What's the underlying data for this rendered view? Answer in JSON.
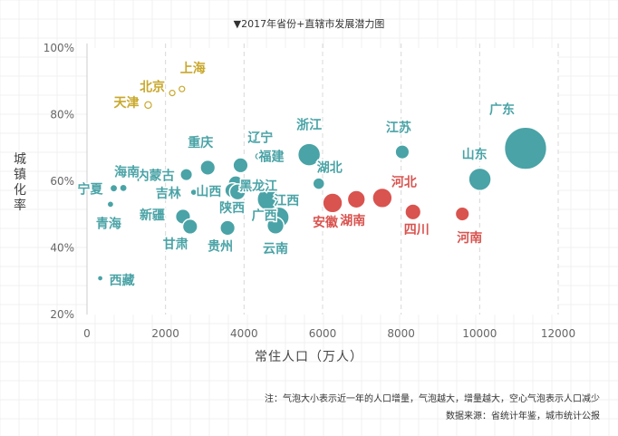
{
  "chart_data": {
    "type": "scatter",
    "title": "▼2017年省份+直辖市发展潜力图",
    "xlabel": "常住人口（万人）",
    "ylabel": "城镇化率",
    "xlim": [
      0,
      12000
    ],
    "ylim": [
      20,
      100
    ],
    "xticks": [
      "0",
      "2000",
      "4000",
      "6000",
      "8000",
      "10000",
      "12000"
    ],
    "yticks": [
      "20%",
      "40%",
      "60%",
      "80%",
      "100%"
    ],
    "grid": "vertical dashed",
    "colors": {
      "gold": "#c9a82c",
      "teal": "#4aa3a6",
      "red": "#d9534f",
      "hollow": "#c9a82c"
    },
    "points": [
      {
        "name": "上海",
        "x": 2418,
        "y": 87.7,
        "size": 0.9,
        "color": "gold",
        "hollow": true
      },
      {
        "name": "北京",
        "x": 2171,
        "y": 86.5,
        "size": 0.9,
        "color": "gold",
        "hollow": true
      },
      {
        "name": "天津",
        "x": 1557,
        "y": 82.9,
        "size": 1.4,
        "color": "gold",
        "hollow": true
      },
      {
        "name": "广东",
        "x": 11169,
        "y": 69.9,
        "size": 9.0,
        "color": "teal"
      },
      {
        "name": "江苏",
        "x": 8029,
        "y": 68.8,
        "size": 3.0,
        "color": "teal"
      },
      {
        "name": "浙江",
        "x": 5657,
        "y": 68.0,
        "size": 4.8,
        "color": "teal"
      },
      {
        "name": "辽宁",
        "x": 4369,
        "y": 67.5,
        "size": 1.1,
        "color": "teal",
        "hollow": true
      },
      {
        "name": "福建",
        "x": 3911,
        "y": 64.8,
        "size": 3.2,
        "color": "teal"
      },
      {
        "name": "重庆",
        "x": 3075,
        "y": 64.1,
        "size": 3.2,
        "color": "teal"
      },
      {
        "name": "内蒙古",
        "x": 2529,
        "y": 62.0,
        "size": 2.6,
        "color": "teal"
      },
      {
        "name": "黑龙江",
        "x": 3789,
        "y": 59.4,
        "size": 3.2,
        "color": "teal"
      },
      {
        "name": "山东",
        "x": 10006,
        "y": 60.6,
        "size": 4.8,
        "color": "teal"
      },
      {
        "name": "湖北",
        "x": 5902,
        "y": 59.3,
        "size": 2.5,
        "color": "teal"
      },
      {
        "name": "宁夏",
        "x": 682,
        "y": 57.9,
        "size": 1.6,
        "color": "teal"
      },
      {
        "name": "海南",
        "x": 926,
        "y": 58.0,
        "size": 1.6,
        "color": "teal"
      },
      {
        "name": "山西",
        "x": 3702,
        "y": 57.3,
        "size": 3.2,
        "color": "teal"
      },
      {
        "name": "陕西",
        "x": 3835,
        "y": 56.8,
        "size": 3.4,
        "color": "teal"
      },
      {
        "name": "吉林",
        "x": 2717,
        "y": 56.7,
        "size": 1.4,
        "color": "teal"
      },
      {
        "name": "江西",
        "x": 4622,
        "y": 54.6,
        "size": 4.8,
        "color": "teal"
      },
      {
        "name": "青海",
        "x": 598,
        "y": 53.1,
        "size": 1.4,
        "color": "teal"
      },
      {
        "name": "新疆",
        "x": 2445,
        "y": 49.4,
        "size": 3.2,
        "color": "teal"
      },
      {
        "name": "广西",
        "x": 4885,
        "y": 49.2,
        "size": 4.4,
        "color": "teal"
      },
      {
        "name": "安徽",
        "x": 6255,
        "y": 53.5,
        "size": 4.2,
        "color": "red"
      },
      {
        "name": "湖南",
        "x": 6860,
        "y": 54.6,
        "size": 3.8,
        "color": "red"
      },
      {
        "name": "河北",
        "x": 7520,
        "y": 55.0,
        "size": 4.2,
        "color": "red"
      },
      {
        "name": "四川",
        "x": 8302,
        "y": 50.8,
        "size": 3.4,
        "color": "red"
      },
      {
        "name": "河南",
        "x": 9559,
        "y": 50.2,
        "size": 3.0,
        "color": "red"
      },
      {
        "name": "甘肃",
        "x": 2626,
        "y": 46.4,
        "size": 3.2,
        "color": "teal"
      },
      {
        "name": "贵州",
        "x": 3580,
        "y": 46.0,
        "size": 3.2,
        "color": "teal"
      },
      {
        "name": "云南",
        "x": 4801,
        "y": 46.7,
        "size": 3.6,
        "color": "teal"
      },
      {
        "name": "西藏",
        "x": 337,
        "y": 30.9,
        "size": 1.2,
        "color": "teal"
      }
    ]
  },
  "note": "注：气泡大小表示近一年的人口增量，气泡越大，增量越大，空心气泡表示人口减少",
  "source": "数据来源：省统计年鉴，城市统计公报"
}
